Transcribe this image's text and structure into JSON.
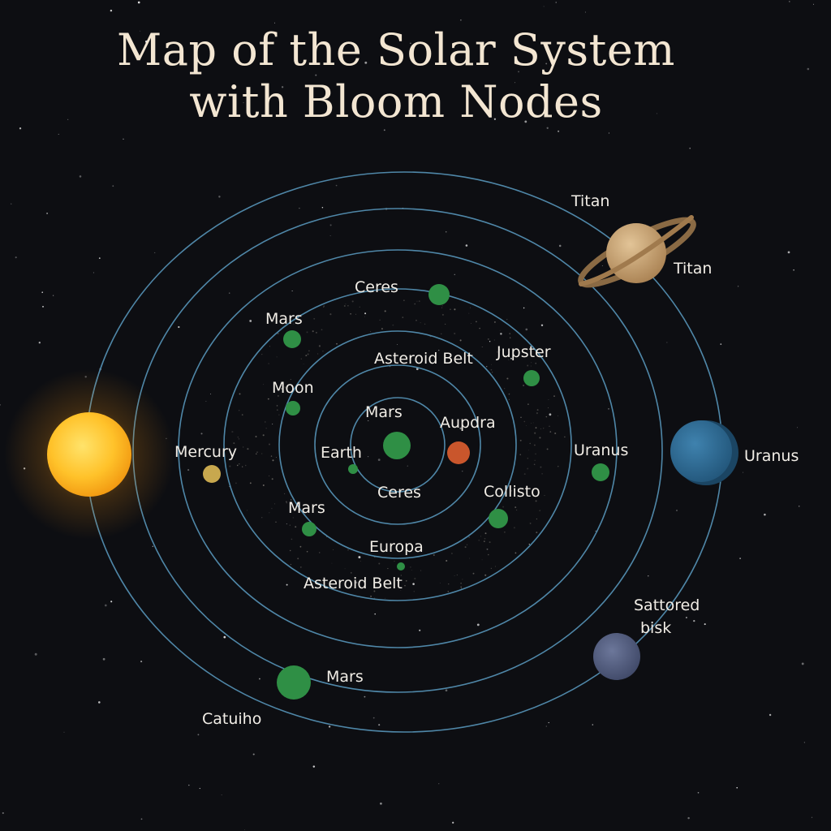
{
  "title": {
    "line1": "Map of the Solar System",
    "line2": "with Bloom Nodes"
  },
  "colors": {
    "background": "#0d0e12",
    "orbit": "#4f87a8",
    "node": "#2f8f45",
    "title": "#f3e6d2",
    "label": "#f1ede6",
    "sun": "#ffb21f",
    "saturn": "#c9a36f",
    "uranus": "#2f6c93",
    "small_planet": "#5a6688",
    "red_planet": "#c9562c",
    "yellow_planet": "#c8a84e"
  },
  "bodies": [
    {
      "id": "sun",
      "icon": "sun-icon",
      "label": ""
    },
    {
      "id": "saturn",
      "icon": "ringed-planet-icon",
      "label": ""
    },
    {
      "id": "uranus",
      "icon": "blue-planet-icon",
      "label": "Uranus"
    },
    {
      "id": "scattered-disk",
      "icon": "grey-blue-planet-icon",
      "label": "Sattored bisk"
    }
  ],
  "labels": {
    "titan_top": "Titan",
    "titan_right": "Titan",
    "uranus_big": "Uranus",
    "scattered_line1": "Sattored",
    "scattered_line2": "bisk",
    "ceres_top": "Ceres",
    "mars_upper": "Mars",
    "asteroid_belt_upper": "Asteroid Belt",
    "jupster": "Jupster",
    "moon": "Moon",
    "mars_center": "Mars",
    "aupdra": "Aupdra",
    "mercury": "Mercury",
    "earth": "Earth",
    "uranus_node": "Uranus",
    "ceres_lower": "Ceres",
    "collisto": "Collisto",
    "mars_lower_left": "Mars",
    "europa": "Europa",
    "asteroid_belt_lower": "Asteroid Belt",
    "mars_bottom": "Mars",
    "catuiho": "Catuiho"
  }
}
